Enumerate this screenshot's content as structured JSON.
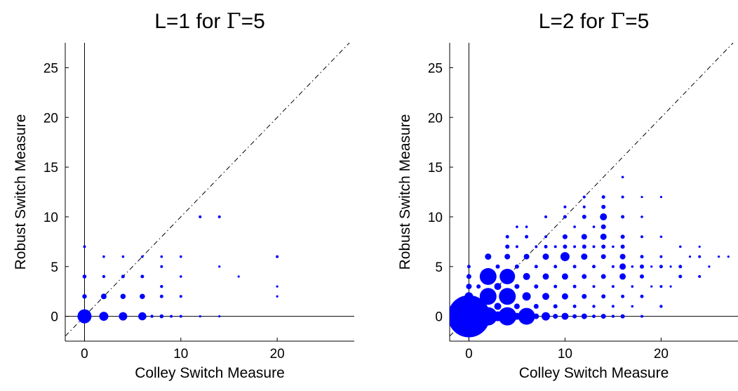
{
  "chart_data": [
    {
      "type": "scatter",
      "title_parts": [
        "L=1 for ",
        "Γ",
        "=5"
      ],
      "xlabel": "Colley Switch Measure",
      "ylabel": "Robust Switch Measure",
      "xlim": [
        -2,
        28
      ],
      "ylim": [
        -2.5,
        27.5
      ],
      "xticks": [
        0,
        10,
        20
      ],
      "yticks": [
        0,
        5,
        10,
        15,
        20,
        25
      ],
      "reference_lines": [
        "y=x (dash-dot)",
        "x=0",
        "y=0"
      ],
      "marker_color": "#0000ff",
      "series": [
        {
          "points": [
            [
              0,
              0,
              10
            ],
            [
              0,
              2,
              3.2
            ],
            [
              0,
              4,
              2.8
            ],
            [
              0,
              7,
              2
            ],
            [
              2,
              0,
              6.5
            ],
            [
              2,
              2,
              4
            ],
            [
              2,
              4,
              2.2
            ],
            [
              2,
              6,
              1.8
            ],
            [
              4,
              0,
              6
            ],
            [
              4,
              2,
              3.8
            ],
            [
              4,
              4,
              2.5
            ],
            [
              4,
              6,
              1.8
            ],
            [
              6,
              0,
              5.8
            ],
            [
              6,
              2,
              3.8
            ],
            [
              6,
              4,
              2.5
            ],
            [
              6,
              6,
              1.8
            ],
            [
              7,
              0,
              2.2
            ],
            [
              8,
              0,
              2.8
            ],
            [
              8,
              2,
              2.5
            ],
            [
              8,
              3,
              2.2
            ],
            [
              8,
              5,
              2
            ],
            [
              8,
              6,
              1.8
            ],
            [
              9,
              0,
              2
            ],
            [
              10,
              0,
              2
            ],
            [
              10,
              2,
              2
            ],
            [
              10,
              4,
              1.8
            ],
            [
              10,
              6,
              1.8
            ],
            [
              12,
              0,
              1.6
            ],
            [
              12,
              10,
              2
            ],
            [
              14,
              0,
              1.6
            ],
            [
              14,
              5,
              1.6
            ],
            [
              14,
              10,
              2
            ],
            [
              16,
              4,
              1.6
            ],
            [
              20,
              2,
              1.6
            ],
            [
              20,
              3,
              1.6
            ],
            [
              20,
              6,
              2
            ]
          ]
        }
      ]
    },
    {
      "type": "scatter",
      "title_parts": [
        "L=2 for ",
        "Γ",
        "=5"
      ],
      "xlabel": "Colley Switch Measure",
      "ylabel": "Robust Switch Measure",
      "xlim": [
        -2,
        28
      ],
      "ylim": [
        -2.5,
        27.5
      ],
      "xticks": [
        0,
        10,
        20
      ],
      "yticks": [
        0,
        5,
        10,
        15,
        20,
        25
      ],
      "reference_lines": [
        "y=x (dash-dot)",
        "x=0",
        "y=0"
      ],
      "marker_color": "#0000ff",
      "series": [
        {
          "points": [
            [
              0,
              0,
              30
            ],
            [
              0,
              2,
              6
            ],
            [
              0,
              3,
              4
            ],
            [
              0,
              4,
              3.5
            ],
            [
              0,
              5,
              2.5
            ],
            [
              1,
              0,
              8
            ],
            [
              1,
              1,
              5
            ],
            [
              1,
              3,
              3
            ],
            [
              2,
              0,
              13
            ],
            [
              2,
              2,
              12
            ],
            [
              2,
              4,
              12
            ],
            [
              2,
              6,
              4.5
            ],
            [
              3,
              0,
              7
            ],
            [
              3,
              1,
              5
            ],
            [
              3,
              3,
              5
            ],
            [
              3,
              5,
              3
            ],
            [
              4,
              0,
              13
            ],
            [
              4,
              2,
              12
            ],
            [
              4,
              4,
              11
            ],
            [
              4,
              6,
              4
            ],
            [
              4,
              7,
              3
            ],
            [
              4,
              8,
              2.5
            ],
            [
              5,
              0,
              5
            ],
            [
              5,
              1,
              4
            ],
            [
              5,
              3,
              3.5
            ],
            [
              5,
              5,
              3
            ],
            [
              5,
              7,
              2
            ],
            [
              5,
              9,
              1.8
            ],
            [
              6,
              0,
              12
            ],
            [
              6,
              2,
              6
            ],
            [
              6,
              4,
              5
            ],
            [
              6,
              6,
              4
            ],
            [
              6,
              8,
              2.5
            ],
            [
              6,
              9,
              1.8
            ],
            [
              7,
              0,
              4
            ],
            [
              7,
              1,
              3.5
            ],
            [
              7,
              3,
              3
            ],
            [
              7,
              5,
              2.5
            ],
            [
              7,
              7,
              2
            ],
            [
              8,
              0,
              6
            ],
            [
              8,
              2,
              5
            ],
            [
              8,
              4,
              4.5
            ],
            [
              8,
              6,
              4.5
            ],
            [
              8,
              7,
              2.5
            ],
            [
              8,
              8,
              2
            ],
            [
              8,
              10,
              2
            ],
            [
              9,
              0,
              3.5
            ],
            [
              9,
              1,
              3
            ],
            [
              9,
              3,
              2.5
            ],
            [
              9,
              5,
              2.5
            ],
            [
              9,
              7,
              2
            ],
            [
              10,
              0,
              5
            ],
            [
              10,
              2,
              4.5
            ],
            [
              10,
              4,
              4.5
            ],
            [
              10,
              6,
              6.5
            ],
            [
              10,
              7,
              3
            ],
            [
              10,
              8,
              3.5
            ],
            [
              10,
              10,
              2.5
            ],
            [
              10,
              11,
              2
            ],
            [
              11,
              0,
              3
            ],
            [
              11,
              1,
              2.5
            ],
            [
              11,
              3,
              2.5
            ],
            [
              11,
              5,
              2.5
            ],
            [
              11,
              7,
              2
            ],
            [
              11,
              9,
              1.8
            ],
            [
              12,
              0,
              4
            ],
            [
              12,
              2,
              3.5
            ],
            [
              12,
              4,
              3.5
            ],
            [
              12,
              6,
              4.5
            ],
            [
              12,
              7,
              3
            ],
            [
              12,
              8,
              4
            ],
            [
              12,
              10,
              3
            ],
            [
              12,
              11,
              2
            ],
            [
              12,
              12,
              2
            ],
            [
              13,
              0,
              2.5
            ],
            [
              13,
              1,
              2.2
            ],
            [
              13,
              3,
              2
            ],
            [
              13,
              5,
              2.5
            ],
            [
              13,
              7,
              2
            ],
            [
              13,
              9,
              1.8
            ],
            [
              14,
              0,
              3.5
            ],
            [
              14,
              2,
              3
            ],
            [
              14,
              4,
              3.5
            ],
            [
              14,
              6,
              3.5
            ],
            [
              14,
              7,
              3
            ],
            [
              14,
              8,
              4.5
            ],
            [
              14,
              9,
              3.5
            ],
            [
              14,
              10,
              5
            ],
            [
              14,
              11,
              3
            ],
            [
              14,
              12,
              2.5
            ],
            [
              15,
              0,
              2.2
            ],
            [
              15,
              1,
              2
            ],
            [
              15,
              3,
              2
            ],
            [
              15,
              5,
              2
            ],
            [
              15,
              7,
              1.8
            ],
            [
              16,
              0,
              3
            ],
            [
              16,
              2,
              2.5
            ],
            [
              16,
              4,
              4.5
            ],
            [
              16,
              5,
              4.5
            ],
            [
              16,
              6,
              4
            ],
            [
              16,
              7,
              3
            ],
            [
              16,
              8,
              3
            ],
            [
              16,
              10,
              2.5
            ],
            [
              16,
              12,
              2
            ],
            [
              16,
              14,
              1.8
            ],
            [
              17,
              1,
              1.8
            ],
            [
              17,
              3,
              1.8
            ],
            [
              17,
              5,
              1.8
            ],
            [
              18,
              0,
              2
            ],
            [
              18,
              2,
              2.5
            ],
            [
              18,
              4,
              3
            ],
            [
              18,
              5,
              3
            ],
            [
              18,
              6,
              2.5
            ],
            [
              18,
              8,
              2
            ],
            [
              18,
              10,
              1.8
            ],
            [
              18,
              12,
              1.6
            ],
            [
              19,
              3,
              1.6
            ],
            [
              19,
              5,
              1.6
            ],
            [
              20,
              1,
              2.2
            ],
            [
              20,
              3,
              2
            ],
            [
              20,
              5,
              2.5
            ],
            [
              20,
              6,
              2
            ],
            [
              20,
              8,
              1.8
            ],
            [
              20,
              12,
              1.6
            ],
            [
              21,
              3,
              1.6
            ],
            [
              21,
              5,
              1.6
            ],
            [
              22,
              4,
              2.5
            ],
            [
              22,
              5,
              2.5
            ],
            [
              22,
              7,
              1.8
            ],
            [
              23,
              6,
              1.6
            ],
            [
              24,
              4,
              2
            ],
            [
              24,
              6,
              2
            ],
            [
              24,
              7,
              1.6
            ],
            [
              25,
              5,
              1.6
            ],
            [
              26,
              6,
              1.6
            ],
            [
              27,
              6,
              1.6
            ]
          ]
        }
      ]
    }
  ]
}
